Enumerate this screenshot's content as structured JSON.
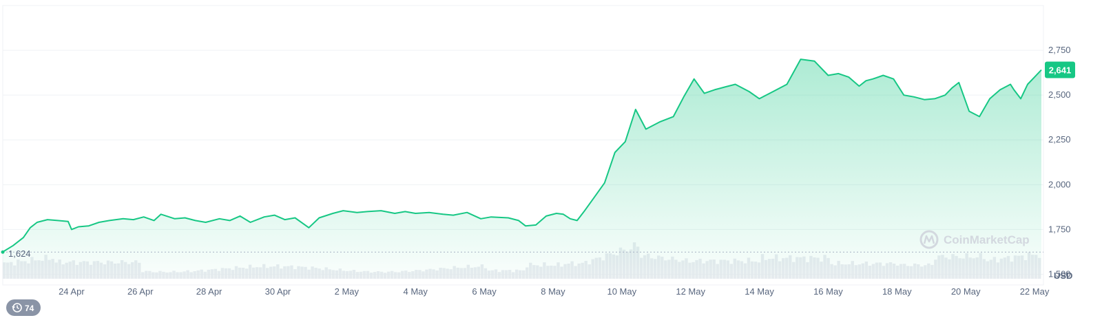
{
  "chart_data": {
    "type": "area",
    "currency": "USD",
    "x_tick_labels": [
      "24 Apr",
      "26 Apr",
      "28 Apr",
      "30 Apr",
      "2 May",
      "4 May",
      "6 May",
      "8 May",
      "10 May",
      "12 May",
      "14 May",
      "16 May",
      "18 May",
      "20 May",
      "22 May"
    ],
    "y_ticks": [
      1500,
      1750,
      2000,
      2250,
      2500,
      2750
    ],
    "y_tick_labels": [
      "1,500",
      "1,750",
      "2,000",
      "2,250",
      "2,500",
      "2,750"
    ],
    "ylim": [
      1475,
      3000
    ],
    "xlim_days": [
      0,
      30.2
    ],
    "x_start_date": "22 Apr",
    "start_value": 1624,
    "start_label": "1,624",
    "current_value": 2641,
    "current_label": "2,641",
    "grid": true,
    "line_color": "#16c784",
    "series": [
      {
        "values_day": [
          0,
          0.3,
          0.6,
          0.8,
          1.0,
          1.3,
          1.6,
          1.9,
          2.0,
          2.2,
          2.5,
          2.8,
          3.1,
          3.5,
          3.8,
          4.1,
          4.4,
          4.6,
          5.0,
          5.3,
          5.6,
          5.9,
          6.3,
          6.6,
          6.9,
          7.2,
          7.6,
          7.9,
          8.2,
          8.5,
          8.9,
          9.2,
          9.6,
          9.9,
          10.3,
          10.6,
          11.0,
          11.4,
          11.7,
          12.0,
          12.4,
          12.8,
          13.1,
          13.5,
          13.9,
          14.2,
          14.7,
          15.0,
          15.2,
          15.5,
          15.8,
          16.1,
          16.3,
          16.5,
          16.7,
          16.9,
          17.2,
          17.5,
          17.8,
          18.1,
          18.4,
          18.7,
          19.1,
          19.5,
          19.8,
          20.1,
          20.4,
          20.7,
          21.0,
          21.3,
          21.7,
          22.0,
          22.4,
          22.8,
          23.2,
          23.6,
          24.0,
          24.3,
          24.6,
          24.9,
          25.1,
          25.3,
          25.6,
          25.9,
          26.2,
          26.5,
          26.8,
          27.1,
          27.4,
          27.6,
          27.8,
          28.1,
          28.4,
          28.7,
          29.0,
          29.3,
          29.4,
          29.6,
          29.8,
          30.0,
          30.2
        ],
        "values": [
          1625,
          1660,
          1705,
          1760,
          1790,
          1805,
          1800,
          1795,
          1750,
          1765,
          1770,
          1790,
          1800,
          1810,
          1805,
          1820,
          1800,
          1835,
          1810,
          1815,
          1800,
          1790,
          1810,
          1800,
          1825,
          1790,
          1820,
          1830,
          1805,
          1815,
          1760,
          1815,
          1840,
          1855,
          1845,
          1850,
          1855,
          1840,
          1850,
          1840,
          1845,
          1835,
          1830,
          1845,
          1810,
          1820,
          1815,
          1800,
          1770,
          1775,
          1825,
          1840,
          1835,
          1810,
          1800,
          1850,
          1930,
          2010,
          2180,
          2240,
          2420,
          2310,
          2350,
          2380,
          2490,
          2590,
          2510,
          2530,
          2545,
          2560,
          2520,
          2480,
          2520,
          2560,
          2700,
          2690,
          2610,
          2620,
          2600,
          2550,
          2580,
          2590,
          2610,
          2590,
          2500,
          2490,
          2475,
          2480,
          2500,
          2540,
          2570,
          2410,
          2380,
          2480,
          2530,
          2560,
          2530,
          2480,
          2560,
          2600,
          2641
        ]
      }
    ]
  },
  "watermark": "CoinMarketCap",
  "history_badge": "74"
}
